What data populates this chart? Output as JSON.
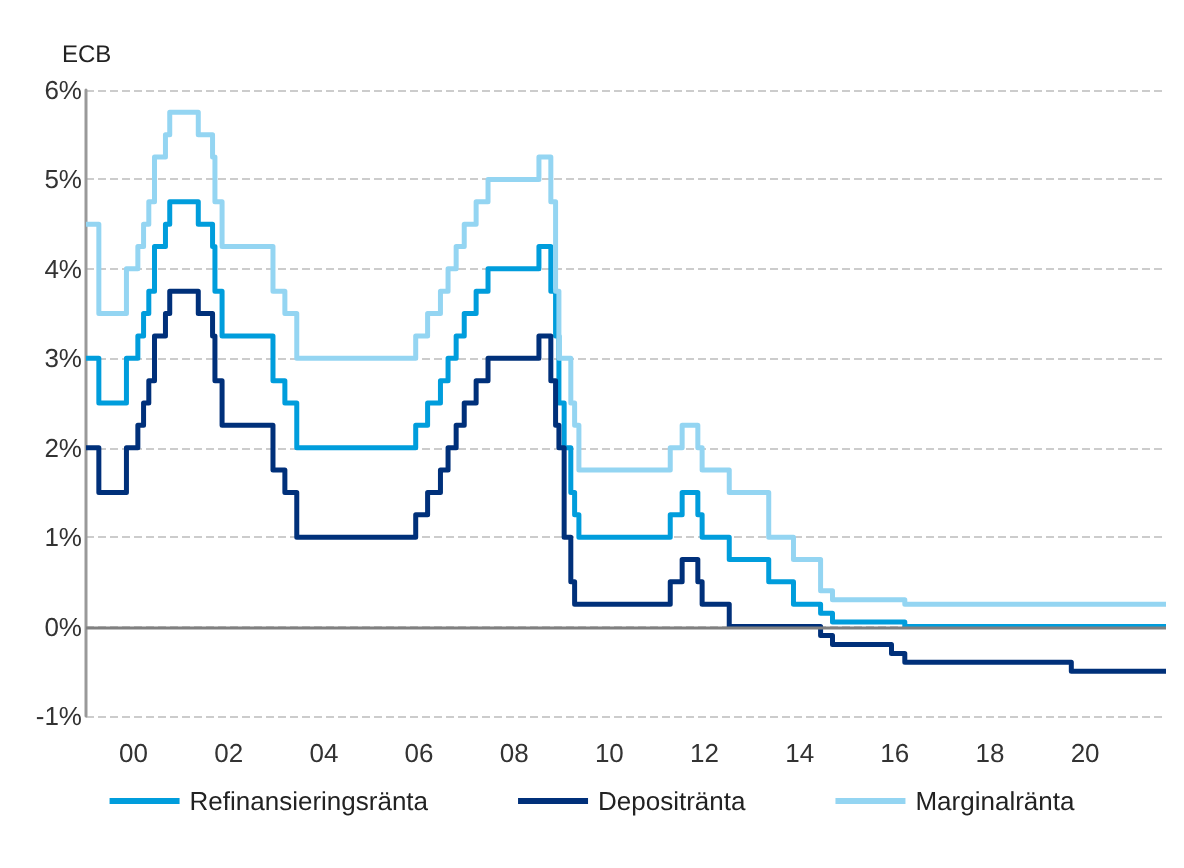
{
  "chart_data": {
    "type": "step",
    "ylabel": "ECB",
    "x": [
      1999.0,
      1999.27,
      1999.85,
      2000.09,
      2000.21,
      2000.32,
      2000.44,
      2000.67,
      2000.76,
      2001.36,
      2001.66,
      2001.71,
      2001.86,
      2002.93,
      2003.18,
      2003.43,
      2005.93,
      2006.18,
      2006.45,
      2006.61,
      2006.78,
      2006.95,
      2007.2,
      2007.45,
      2008.52,
      2008.77,
      2008.87,
      2008.94,
      2009.05,
      2009.19,
      2009.27,
      2009.36,
      2011.28,
      2011.53,
      2011.86,
      2011.95,
      2012.52,
      2013.35,
      2013.87,
      2014.44,
      2014.69,
      2015.93,
      2016.21,
      2019.71,
      2021.7
    ],
    "series": [
      {
        "name": "Refinansieringsränta",
        "color": "#009ddc",
        "values": [
          3,
          2.5,
          3,
          3.25,
          3.5,
          3.75,
          4.25,
          4.5,
          4.75,
          4.5,
          4.25,
          3.75,
          3.25,
          2.75,
          2.5,
          2,
          2.25,
          2.5,
          2.75,
          3,
          3.25,
          3.5,
          3.75,
          4,
          4.25,
          3.75,
          3.25,
          2.5,
          2,
          1.5,
          1.25,
          1,
          1.25,
          1.5,
          1.25,
          1,
          0.75,
          0.5,
          0.25,
          0.15,
          0.05,
          0.05,
          0,
          0,
          0
        ]
      },
      {
        "name": "Depositränta",
        "color": "#00307a",
        "values": [
          2,
          1.5,
          2,
          2.25,
          2.5,
          2.75,
          3.25,
          3.5,
          3.75,
          3.5,
          3.25,
          2.75,
          2.25,
          1.75,
          1.5,
          1,
          1.25,
          1.5,
          1.75,
          2,
          2.25,
          2.5,
          2.75,
          3,
          3.25,
          2.75,
          2.25,
          2,
          1,
          0.5,
          0.25,
          0.25,
          0.5,
          0.75,
          0.5,
          0.25,
          0,
          0,
          0,
          -0.1,
          -0.2,
          -0.3,
          -0.4,
          -0.5,
          -0.5
        ]
      },
      {
        "name": "Marginalränta",
        "color": "#94d5f2",
        "values": [
          4.5,
          3.5,
          4,
          4.25,
          4.5,
          4.75,
          5.25,
          5.5,
          5.75,
          5.5,
          5.25,
          4.75,
          4.25,
          3.75,
          3.5,
          3,
          3.25,
          3.5,
          3.75,
          4,
          4.25,
          4.5,
          4.75,
          5,
          5.25,
          4.75,
          3.75,
          3,
          3,
          2.5,
          2.25,
          1.75,
          2,
          2.25,
          2,
          1.75,
          1.5,
          1,
          0.75,
          0.4,
          0.3,
          0.3,
          0.25,
          0.25,
          0.25
        ]
      }
    ],
    "xlim": [
      1999.0,
      2021.7
    ],
    "xticks": [
      {
        "value": 2000,
        "label": "00"
      },
      {
        "value": 2002,
        "label": "02"
      },
      {
        "value": 2004,
        "label": "04"
      },
      {
        "value": 2006,
        "label": "06"
      },
      {
        "value": 2008,
        "label": "08"
      },
      {
        "value": 2010,
        "label": "10"
      },
      {
        "value": 2012,
        "label": "12"
      },
      {
        "value": 2014,
        "label": "14"
      },
      {
        "value": 2016,
        "label": "16"
      },
      {
        "value": 2018,
        "label": "18"
      },
      {
        "value": 2020,
        "label": "20"
      }
    ],
    "ylim": [
      -1,
      6
    ],
    "yticks": [
      {
        "value": -1,
        "label": "-1%"
      },
      {
        "value": 0,
        "label": "0%"
      },
      {
        "value": 1,
        "label": "1%"
      },
      {
        "value": 2,
        "label": "2%"
      },
      {
        "value": 3,
        "label": "3%"
      },
      {
        "value": 4,
        "label": "4%"
      },
      {
        "value": 5,
        "label": "5%"
      },
      {
        "value": 6,
        "label": "6%"
      }
    ],
    "ref_lines": [
      {
        "axis": "y",
        "value": 0,
        "color": "#808080"
      }
    ],
    "grid": "y",
    "legend": "bottom",
    "marker": "none",
    "line_style": "solid"
  }
}
